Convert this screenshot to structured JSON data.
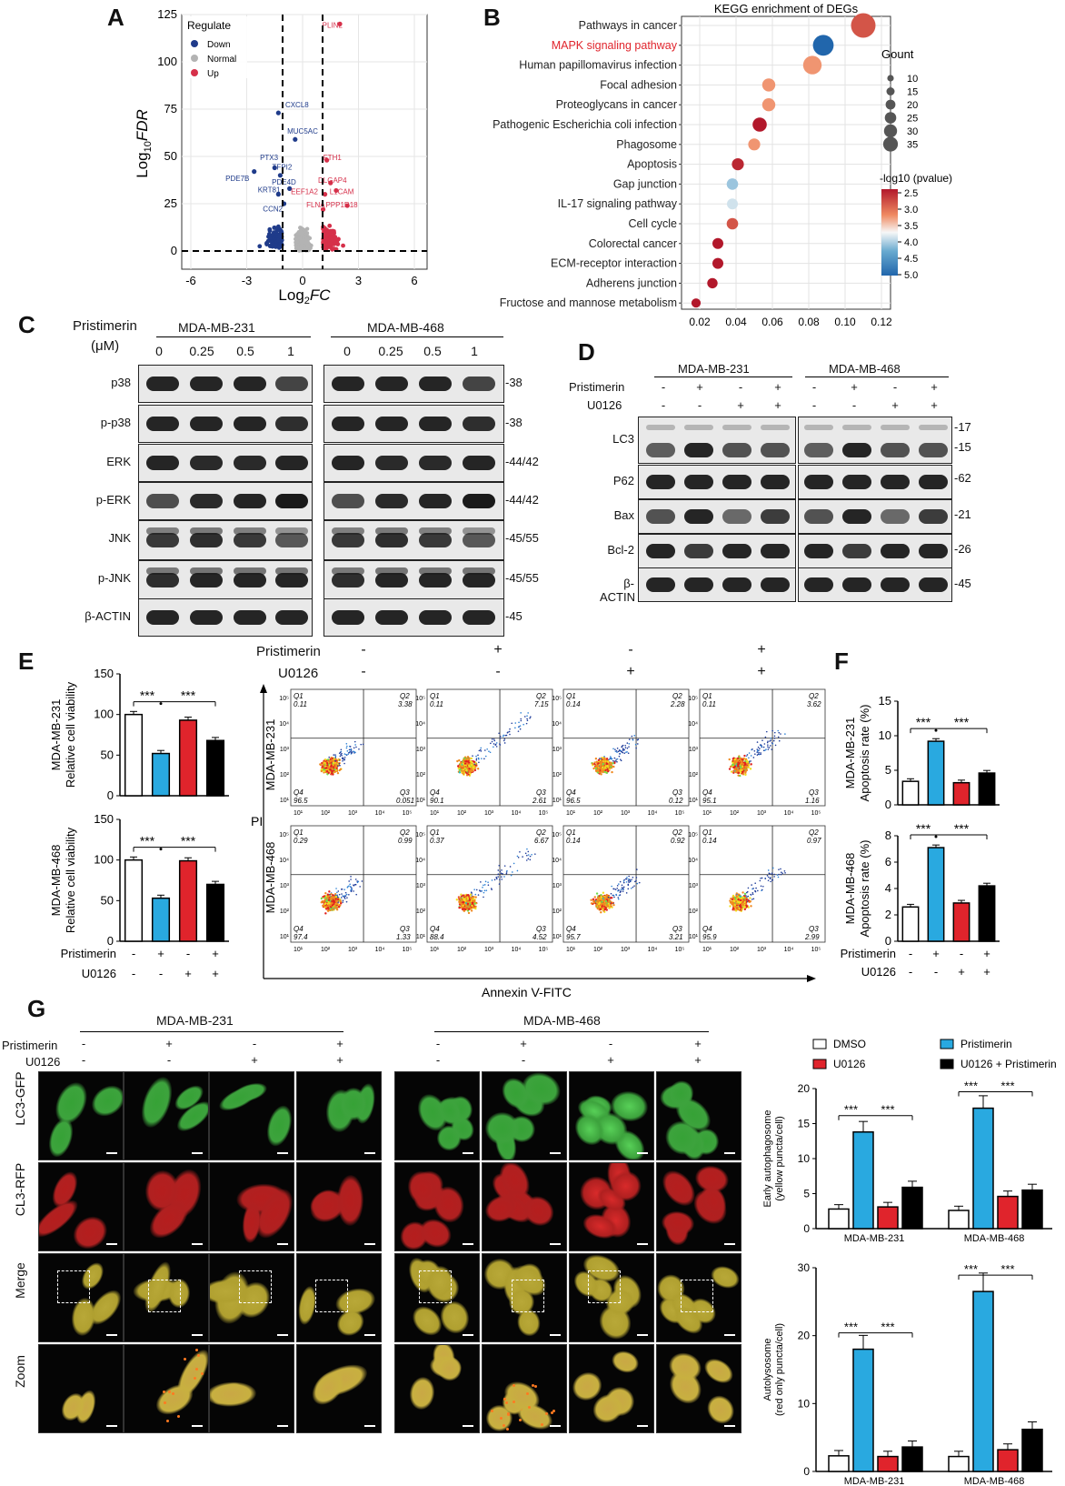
{
  "panels": {
    "A": "A",
    "B": "B",
    "C": "C",
    "D": "D",
    "E": "E",
    "F": "F",
    "G": "G"
  },
  "volcano": {
    "xlabel": "Log2FC",
    "ylabel": "Log10FDR",
    "legend_title": "Regulate",
    "legend": [
      "Down",
      "Normal",
      "Up"
    ],
    "colors": {
      "down": "#1f3b8a",
      "normal": "#b3b3b3",
      "up": "#d6304a"
    },
    "xticks": [
      "-6",
      "-3",
      "0",
      "3",
      "6"
    ],
    "yticks": [
      "0",
      "25",
      "50",
      "75",
      "100",
      "125"
    ],
    "genes_down": [
      "CXCL8",
      "MUC5AC",
      "PTX3",
      "TFPI2",
      "PDE7B",
      "PDE4D",
      "KRT81",
      "CCN2"
    ],
    "genes_up": [
      "PLIN2",
      "FTH1",
      "DLGAP4",
      "EEF1A2",
      "L1CAM",
      "FLNA",
      "PPP1R18"
    ]
  },
  "chart_data": [
    {
      "type": "scatter",
      "title": "KEGG enrichment of DEGs",
      "ylabel": "",
      "categories": [
        "Pathways in cancer",
        "MAPK signaling pathway",
        "Human papillomavirus infection",
        "Focal adhesion",
        "Proteoglycans in cancer",
        "Pathogenic Escherichia coli infection",
        "Phagosome",
        "Apoptosis",
        "Gap junction",
        "IL-17 signaling pathway",
        "Cell cycle",
        "Colorectal cancer",
        "ECM-receptor interaction",
        "Adherens junction",
        "Fructose and mannose metabolism"
      ],
      "x": [
        0.11,
        0.088,
        0.082,
        0.058,
        0.058,
        0.053,
        0.05,
        0.041,
        0.038,
        0.038,
        0.038,
        0.03,
        0.03,
        0.027,
        0.018
      ],
      "count": [
        35,
        28,
        24,
        14,
        14,
        16,
        12,
        12,
        11,
        10,
        11,
        10,
        10,
        9,
        7
      ],
      "neglogp": [
        2.9,
        5.0,
        3.3,
        3.3,
        3.3,
        2.5,
        3.3,
        2.6,
        4.1,
        3.9,
        2.9,
        2.5,
        2.5,
        2.5,
        2.5
      ],
      "xticks": [
        "0.02",
        "0.04",
        "0.06",
        "0.08",
        "0.10",
        "0.12"
      ],
      "size_legend_title": "Gount",
      "size_legend": [
        "10",
        "15",
        "20",
        "25",
        "30",
        "35"
      ],
      "color_legend_title": "-log10 (pvalue)",
      "color_legend": [
        "2.5",
        "3.0",
        "3.5",
        "4.0",
        "4.5",
        "5.0"
      ],
      "highlight": "MAPK signaling pathway"
    },
    {
      "type": "bar",
      "name": "E",
      "rows": [
        "MDA-MB-231",
        "MDA-MB-468"
      ],
      "ylabel": "Relative cell viability",
      "ylim": [
        0,
        150
      ],
      "yticks": [
        "0",
        "50",
        "100",
        "150"
      ],
      "values": [
        [
          100,
          52,
          93,
          68
        ],
        [
          100,
          53,
          99,
          70
        ]
      ],
      "sig": [
        "***",
        "***"
      ]
    },
    {
      "type": "bar",
      "name": "F",
      "rows": [
        "MDA-MB-231",
        "MDA-MB-468"
      ],
      "ylabel": "Apoptosis rate (%)",
      "ylims": [
        [
          0,
          15
        ],
        [
          0,
          8
        ]
      ],
      "yticks": [
        [
          "0",
          "5",
          "10",
          "15"
        ],
        [
          "0",
          "2",
          "4",
          "6",
          "8"
        ]
      ],
      "values": [
        [
          3.4,
          9.2,
          3.2,
          4.6
        ],
        [
          2.6,
          7.1,
          2.9,
          4.2
        ]
      ],
      "sig": [
        "***",
        "***"
      ]
    },
    {
      "type": "bar",
      "name": "G",
      "groups": [
        "MDA-MB-231",
        "MDA-MB-468"
      ],
      "series": [
        {
          "name": "DMSO",
          "color": "#ffffff"
        },
        {
          "name": "Pristimerin",
          "color": "#29a9e0"
        },
        {
          "name": "U0126",
          "color": "#e0242c"
        },
        {
          "name": "U0126 + Pristimerin",
          "color": "#000000"
        }
      ],
      "early": {
        "ylabel": "Early autophagosome (yellow puncta/cell)",
        "ylim": [
          0,
          20
        ],
        "yticks": [
          "0",
          "5",
          "10",
          "15",
          "20"
        ],
        "values": [
          [
            2.8,
            13.8,
            3.1,
            5.9
          ],
          [
            2.6,
            17.2,
            4.6,
            5.5
          ]
        ]
      },
      "auto": {
        "ylabel": "Autolysosome (red only puncta/cell)",
        "ylim": [
          0,
          30
        ],
        "yticks": [
          "0",
          "10",
          "20",
          "30"
        ],
        "values": [
          [
            2.3,
            18.0,
            2.2,
            3.6
          ],
          [
            2.2,
            26.5,
            3.2,
            6.2
          ]
        ]
      },
      "sig": "***"
    }
  ],
  "labels": {
    "pristimerin": "Pristimerin",
    "um": "(μM)",
    "u0126": "U0126",
    "cell231": "MDA-MB-231",
    "cell468": "MDA-MB-468",
    "doses": [
      "0",
      "0.25",
      "0.5",
      "1"
    ],
    "blotC": [
      "p38",
      "p-p38",
      "ERK",
      "p-ERK",
      "JNK",
      "p-JNK",
      "β-ACTIN"
    ],
    "markersC": [
      "-38",
      "-38",
      "-44/42",
      "-44/42",
      "-45/55",
      "-45/55",
      "-45"
    ],
    "blotD": [
      "LC3",
      "P62",
      "Bax",
      "Bcl-2",
      "β-ACTIN"
    ],
    "markersD": [
      "-17",
      "-15",
      "-62",
      "-21",
      "-26",
      "-45"
    ],
    "signs_p": [
      "-",
      "+",
      "-",
      "+"
    ],
    "signs_u": [
      "-",
      "-",
      "+",
      "+"
    ],
    "pi": "PI",
    "annexin": "Annexin V-FITC",
    "quad_231": [
      [
        "Q1",
        "0.11",
        "Q2",
        "3.38",
        "Q4",
        "96.5",
        "Q3",
        "0.051"
      ],
      [
        "Q1",
        "0.11",
        "Q2",
        "7.15",
        "Q4",
        "90.1",
        "Q3",
        "2.61"
      ],
      [
        "Q1",
        "0.14",
        "Q2",
        "2.28",
        "Q4",
        "96.5",
        "Q3",
        "0.12"
      ],
      [
        "Q1",
        "0.11",
        "Q2",
        "3.62",
        "Q4",
        "95.1",
        "Q3",
        "1.16"
      ]
    ],
    "quad_468": [
      [
        "Q1",
        "0.29",
        "Q2",
        "0.99",
        "Q4",
        "97.4",
        "Q3",
        "1.33"
      ],
      [
        "Q1",
        "0.37",
        "Q2",
        "6.67",
        "Q4",
        "88.4",
        "Q3",
        "4.52"
      ],
      [
        "Q1",
        "0.14",
        "Q2",
        "0.92",
        "Q4",
        "95.7",
        "Q3",
        "3.21"
      ],
      [
        "Q1",
        "0.14",
        "Q2",
        "0.97",
        "Q4",
        "95.9",
        "Q3",
        "2.99"
      ]
    ],
    "flow_ticks": [
      "10¹",
      "10²",
      "10³",
      "10⁴",
      "10⁵"
    ],
    "micro_rows": [
      "LC3-GFP",
      "CL3-RFP",
      "Merge",
      "Zoom"
    ]
  }
}
